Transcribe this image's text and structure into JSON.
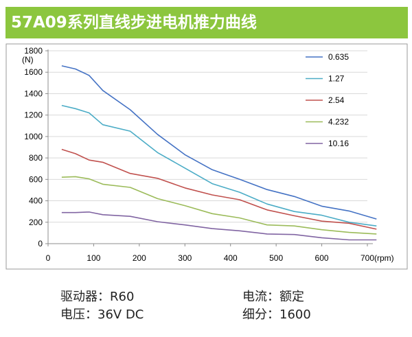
{
  "header": {
    "title": "57A09系列直线步进电机推力曲线"
  },
  "chart_data": {
    "type": "line",
    "title": "",
    "xlabel": "(rpm)",
    "ylabel": "(N)",
    "xlim": [
      0,
      700
    ],
    "ylim": [
      0,
      1800
    ],
    "x_ticks": [
      0,
      100,
      200,
      300,
      400,
      500,
      600,
      700
    ],
    "y_ticks": [
      0,
      200,
      400,
      600,
      800,
      1000,
      1200,
      1400,
      1600,
      1800
    ],
    "grid": "horizontal",
    "legend": "right",
    "x": [
      30,
      60,
      90,
      120,
      180,
      240,
      300,
      360,
      420,
      480,
      540,
      600,
      660,
      720
    ],
    "series": [
      {
        "name": "0.635",
        "color": "#4472c4",
        "values": [
          1660,
          1630,
          1570,
          1430,
          1250,
          1020,
          830,
          690,
          600,
          505,
          440,
          350,
          305,
          230
        ]
      },
      {
        "name": "1.27",
        "color": "#4bacc6",
        "values": [
          1290,
          1260,
          1220,
          1110,
          1050,
          850,
          705,
          560,
          480,
          370,
          300,
          265,
          200,
          165
        ]
      },
      {
        "name": "2.54",
        "color": "#c0504d",
        "values": [
          880,
          840,
          780,
          760,
          655,
          610,
          520,
          455,
          410,
          315,
          260,
          210,
          190,
          135
        ]
      },
      {
        "name": "4.232",
        "color": "#9bbb59",
        "values": [
          620,
          625,
          605,
          555,
          525,
          420,
          355,
          280,
          240,
          175,
          165,
          130,
          105,
          90
        ]
      },
      {
        "name": "10.16",
        "color": "#8064a2",
        "values": [
          290,
          290,
          295,
          270,
          255,
          205,
          175,
          140,
          120,
          90,
          85,
          55,
          35,
          35
        ]
      }
    ]
  },
  "specs": {
    "driver": "驱动器：R60",
    "current": "电流：额定",
    "voltage": "电压：36V DC",
    "microstep": "细分：1600"
  }
}
